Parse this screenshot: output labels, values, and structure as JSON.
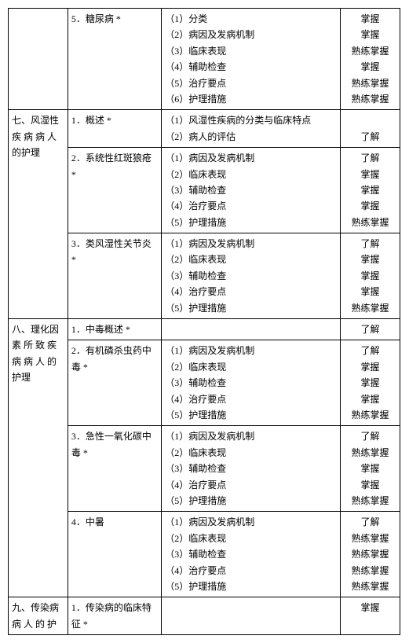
{
  "rows": [
    {
      "c1": "",
      "c2": "5．糖尿病 *",
      "c3": [
        "（1）分类",
        "（2）病因及发病机制",
        "（3）临床表现",
        "（4）辅助检查",
        "（5）治疗要点",
        "（6）护理措施"
      ],
      "c4": [
        "掌握",
        "掌握",
        "熟练掌握",
        "掌握",
        "熟练掌握",
        "熟练掌握"
      ]
    },
    {
      "c1": "七、风湿性疾 病 病 人的护理",
      "c2": "1．概述 *",
      "c3": [
        "（1）风湿性疾病的分类与临床特点",
        "（2）病人的评估"
      ],
      "c4": [
        "",
        "了解"
      ]
    },
    {
      "c1": "",
      "c2": "2．系统性红斑狼疮 *",
      "c3": [
        "（1）病因及发病机制",
        "（2）临床表现",
        "（3）辅助检查",
        "（4）治疗要点",
        "（5）护理措施"
      ],
      "c4": [
        "了解",
        "掌握",
        "掌握",
        "掌握",
        "熟练掌握"
      ]
    },
    {
      "c1": "",
      "c2": "3．类风湿性关节炎 *",
      "c3": [
        "（1）病因及发病机制",
        "（2）临床表现",
        "（3）辅助检查",
        "（4）治疗要点",
        "（5）护理措施"
      ],
      "c4": [
        "了解",
        "掌握",
        "掌握",
        "掌握",
        "熟练掌握"
      ]
    },
    {
      "c1": "八、理化因素 所 致 疾病 病 人 的护理",
      "c2": "1．中毒概述 *",
      "c3": [
        ""
      ],
      "c4": [
        "了解"
      ]
    },
    {
      "c1": "",
      "c2": "2．有机磷杀虫药中毒 *",
      "c3": [
        "（1）病因及发病机制",
        "（2）临床表现",
        "（3）辅助检查",
        "（4）治疗要点",
        "（5）护理措施"
      ],
      "c4": [
        "了解",
        "掌握",
        "掌握",
        "掌握",
        "熟练掌握"
      ]
    },
    {
      "c1": "",
      "c2": "3．急性一氧化碳中毒 *",
      "c3": [
        "（1）病因及发病机制",
        "（2）临床表现",
        "（3）辅助检查",
        "（4）治疗要点",
        "（5）护理措施"
      ],
      "c4": [
        "了解",
        "熟练掌握",
        "掌握",
        "掌握",
        "熟练掌握"
      ]
    },
    {
      "c1": "",
      "c2": "4．中暑",
      "c3": [
        "（1）病因及发病机制",
        "（2）临床表现",
        "（3）辅助检查",
        "（4）治疗要点",
        "（5）护理措施"
      ],
      "c4": [
        "了解",
        "熟练掌握",
        "熟练掌握",
        "熟练掌握",
        "熟练掌握"
      ]
    },
    {
      "c1": "九、传染病病 人 的 护",
      "c2": "1．传染病的临床特征 *",
      "c3": [
        ""
      ],
      "c4": [
        "掌握"
      ]
    }
  ]
}
